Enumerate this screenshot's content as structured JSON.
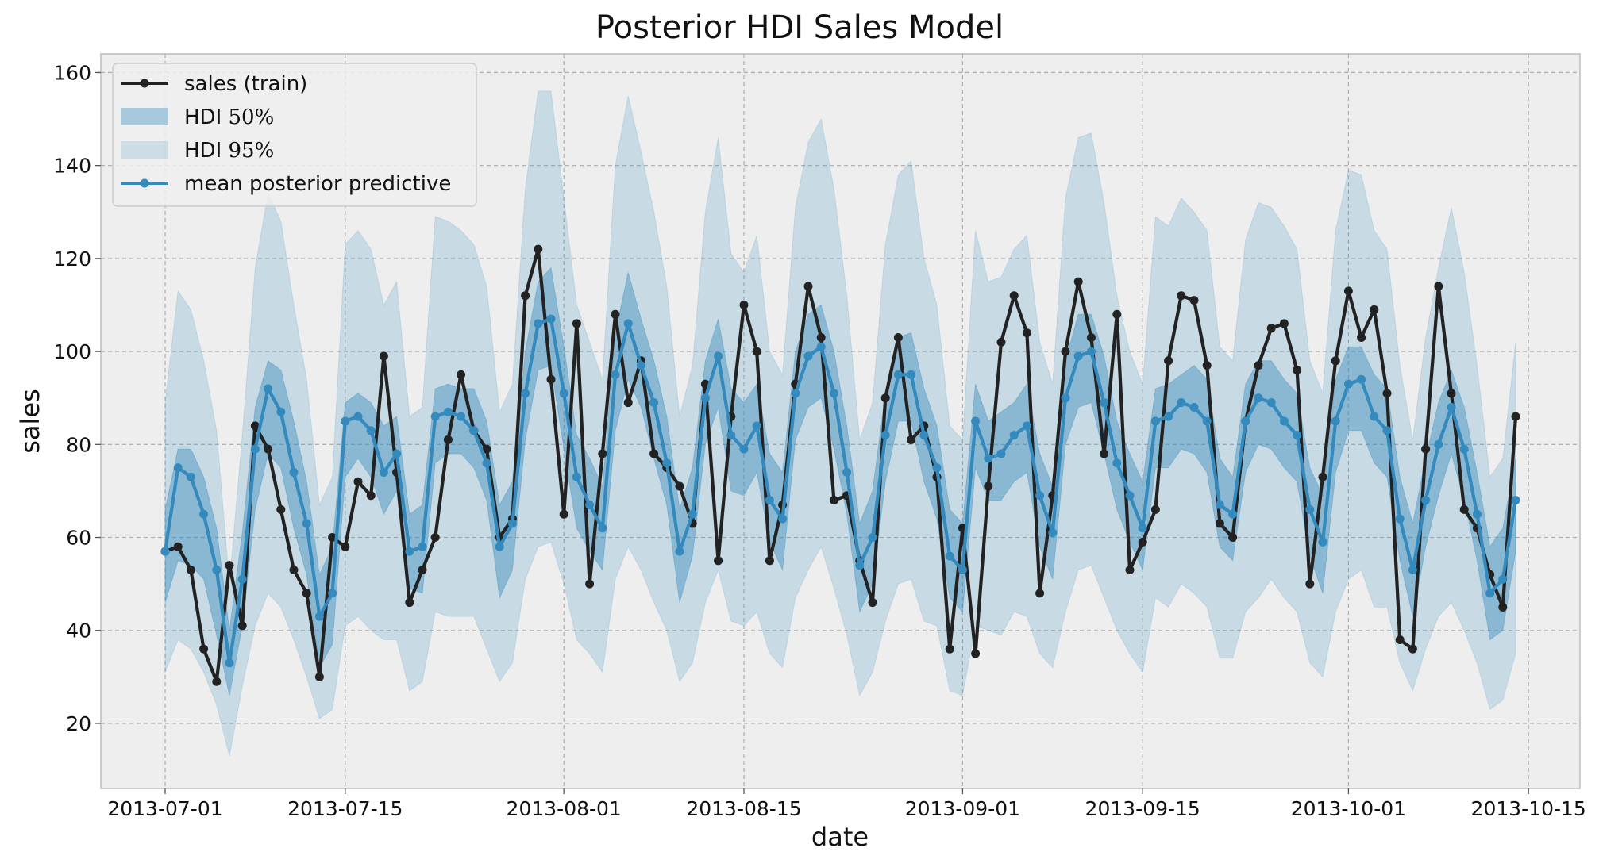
{
  "chart_data": {
    "type": "line",
    "title": "Posterior HDI Sales Model",
    "xlabel": "date",
    "ylabel": "sales",
    "xlim": [
      "2013-06-26",
      "2013-10-19"
    ],
    "ylim": [
      6,
      164
    ],
    "grid": true,
    "legend_position": "top-left",
    "x_ticks": [
      "2013-07-01",
      "2013-07-15",
      "2013-08-01",
      "2013-08-15",
      "2013-09-01",
      "2013-09-15",
      "2013-10-01",
      "2013-10-15"
    ],
    "y_ticks": [
      20,
      40,
      60,
      80,
      100,
      120,
      140,
      160
    ],
    "colors": {
      "sales": "#222222",
      "mean": "#348abd",
      "hdi50": "#348abd",
      "hdi95": "#348abd",
      "background": "#eeeeee"
    },
    "legend": {
      "sales": "sales (train)",
      "hdi50": "HDI $50\\%$",
      "hdi95": "HDI $95\\%$",
      "mean": "mean posterior predictive"
    },
    "x_start": "2013-07-01",
    "sales": [
      57,
      58,
      53,
      36,
      29,
      54,
      41,
      84,
      79,
      66,
      53,
      48,
      30,
      60,
      58,
      72,
      69,
      99,
      74,
      46,
      53,
      60,
      81,
      95,
      83,
      79,
      60,
      64,
      112,
      122,
      94,
      65,
      106,
      50,
      78,
      108,
      89,
      98,
      78,
      75,
      71,
      63,
      93,
      55,
      86,
      110,
      100,
      55,
      67,
      93,
      114,
      103,
      68,
      69,
      55,
      46,
      90,
      103,
      81,
      84,
      73,
      36,
      62,
      35,
      71,
      102,
      112,
      104,
      48,
      69,
      100,
      115,
      103,
      78,
      108,
      53,
      59,
      66,
      98,
      112,
      111,
      97,
      63,
      60,
      85,
      97,
      105,
      106,
      96,
      50,
      73,
      98,
      113,
      103,
      109,
      91,
      38,
      36,
      79,
      114,
      91,
      66,
      62,
      52,
      45,
      86
    ],
    "mean": [
      57,
      75,
      73,
      65,
      53,
      33,
      51,
      79,
      92,
      87,
      74,
      63,
      43,
      48,
      85,
      86,
      83,
      74,
      78,
      57,
      58,
      86,
      87,
      86,
      83,
      76,
      58,
      63,
      91,
      106,
      107,
      91,
      73,
      67,
      62,
      95,
      106,
      97,
      89,
      76,
      57,
      65,
      90,
      99,
      82,
      79,
      84,
      68,
      64,
      91,
      99,
      101,
      91,
      74,
      54,
      60,
      82,
      95,
      95,
      82,
      75,
      56,
      53,
      85,
      77,
      78,
      82,
      84,
      69,
      61,
      90,
      99,
      100,
      89,
      76,
      69,
      62,
      85,
      86,
      89,
      88,
      85,
      67,
      65,
      85,
      90,
      89,
      85,
      82,
      66,
      59,
      85,
      93,
      94,
      86,
      83,
      64,
      53,
      68,
      80,
      88,
      79,
      65,
      48,
      51,
      68
    ],
    "hdi50_low": [
      46,
      55,
      54,
      51,
      39,
      26,
      41,
      66,
      78,
      75,
      62,
      52,
      32,
      37,
      73,
      77,
      73,
      65,
      70,
      49,
      48,
      76,
      78,
      78,
      75,
      68,
      47,
      53,
      81,
      96,
      97,
      79,
      62,
      57,
      53,
      83,
      94,
      88,
      77,
      67,
      46,
      56,
      80,
      88,
      70,
      69,
      74,
      59,
      53,
      81,
      88,
      90,
      79,
      65,
      44,
      50,
      72,
      85,
      85,
      72,
      64,
      47,
      44,
      75,
      68,
      68,
      72,
      74,
      58,
      51,
      80,
      88,
      89,
      78,
      66,
      59,
      53,
      75,
      75,
      79,
      78,
      74,
      58,
      55,
      74,
      80,
      79,
      75,
      72,
      56,
      48,
      74,
      83,
      83,
      76,
      73,
      55,
      43,
      58,
      69,
      78,
      68,
      55,
      38,
      40,
      57
    ],
    "hdi50_high": [
      66,
      79,
      79,
      73,
      62,
      40,
      61,
      88,
      98,
      96,
      85,
      72,
      52,
      58,
      89,
      91,
      89,
      84,
      86,
      65,
      67,
      92,
      93,
      92,
      92,
      85,
      67,
      72,
      100,
      115,
      118,
      101,
      82,
      77,
      71,
      104,
      117,
      107,
      98,
      86,
      66,
      75,
      98,
      107,
      92,
      89,
      93,
      78,
      74,
      100,
      108,
      110,
      100,
      84,
      63,
      70,
      91,
      103,
      104,
      92,
      84,
      66,
      63,
      93,
      85,
      87,
      89,
      93,
      78,
      71,
      98,
      108,
      108,
      99,
      85,
      78,
      72,
      92,
      93,
      95,
      97,
      94,
      77,
      73,
      93,
      98,
      98,
      94,
      91,
      75,
      69,
      94,
      101,
      101,
      95,
      92,
      73,
      63,
      77,
      89,
      96,
      88,
      74,
      58,
      62,
      77
    ],
    "hdi95_low": [
      31,
      38,
      36,
      31,
      24,
      13,
      28,
      41,
      48,
      45,
      38,
      30,
      21,
      23,
      41,
      43,
      40,
      38,
      38,
      27,
      29,
      44,
      43,
      43,
      43,
      36,
      29,
      33,
      51,
      58,
      59,
      50,
      38,
      35,
      31,
      51,
      58,
      53,
      46,
      40,
      29,
      33,
      46,
      53,
      42,
      41,
      44,
      35,
      32,
      47,
      53,
      58,
      49,
      39,
      26,
      31,
      42,
      50,
      51,
      42,
      41,
      27,
      26,
      41,
      40,
      39,
      44,
      43,
      35,
      32,
      44,
      53,
      54,
      47,
      40,
      35,
      31,
      47,
      45,
      50,
      48,
      45,
      34,
      34,
      44,
      47,
      51,
      47,
      44,
      33,
      30,
      44,
      51,
      53,
      45,
      45,
      33,
      27,
      36,
      43,
      46,
      40,
      33,
      23,
      25,
      35
    ],
    "hdi95_high": [
      89,
      113,
      109,
      98,
      83,
      50,
      82,
      118,
      134,
      128,
      110,
      94,
      67,
      73,
      123,
      126,
      122,
      110,
      115,
      86,
      88,
      129,
      128,
      126,
      123,
      114,
      87,
      93,
      135,
      156,
      156,
      133,
      110,
      102,
      94,
      140,
      155,
      143,
      130,
      114,
      86,
      97,
      130,
      146,
      121,
      117,
      125,
      100,
      95,
      131,
      145,
      150,
      135,
      112,
      81,
      89,
      123,
      138,
      141,
      120,
      110,
      84,
      81,
      126,
      115,
      116,
      122,
      125,
      102,
      93,
      133,
      146,
      147,
      132,
      112,
      100,
      93,
      129,
      127,
      133,
      130,
      126,
      101,
      98,
      124,
      132,
      131,
      127,
      122,
      98,
      91,
      126,
      139,
      138,
      126,
      122,
      97,
      81,
      103,
      118,
      131,
      117,
      97,
      73,
      77,
      102
    ]
  }
}
